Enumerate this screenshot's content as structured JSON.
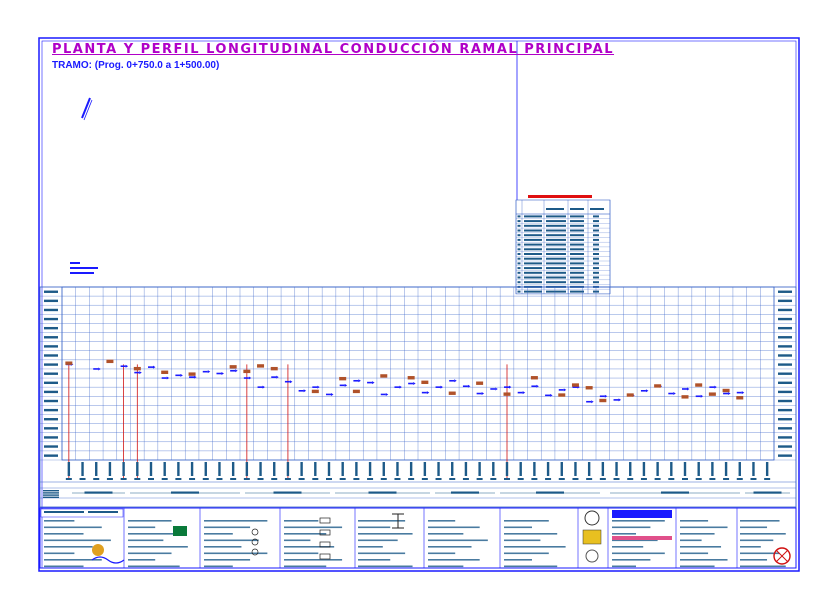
{
  "title": "PLANTA Y PERFIL LONGITUDINAL CONDUCCIÓN RAMAL PRINCIPAL",
  "subtitle": "TRAMO: (Prog. 0+750.0 a 1+500.00)",
  "colors": {
    "title": "#b000c8",
    "subtitle": "#1a1aff",
    "grid": "#3a64c8",
    "frame": "#1a1aff",
    "cells": "#1d5a88",
    "markers": "#b0522a",
    "profile": "#1a1aff",
    "redline": "#d01010"
  },
  "chart_data": {
    "type": "line",
    "title": "",
    "xlabel": "",
    "ylabel": "",
    "n_columns": 52,
    "ylim": [
      0,
      19
    ],
    "series": [
      {
        "name": "",
        "x": [
          1,
          3,
          5,
          6,
          7,
          8,
          9,
          10,
          11,
          12,
          13,
          14,
          15,
          16,
          17,
          18,
          19,
          20,
          21,
          22,
          23,
          24,
          25,
          26,
          27,
          28,
          29,
          30,
          31,
          32,
          33,
          34,
          35,
          36,
          37,
          38,
          39,
          40,
          41,
          42,
          43,
          44,
          45,
          46,
          47,
          48,
          49,
          50
        ],
        "y": [
          10.5,
          10.0,
          10.3,
          9.6,
          10.2,
          9.0,
          9.3,
          9.1,
          9.7,
          9.5,
          9.8,
          9.0,
          8.0,
          9.1,
          8.6,
          7.6,
          8.0,
          7.2,
          8.2,
          8.7,
          8.5,
          7.2,
          8.0,
          8.4,
          7.4,
          8.0,
          8.7,
          8.1,
          7.3,
          7.8,
          8.0,
          7.4,
          8.1,
          7.1,
          7.7,
          8.0,
          6.4,
          7.0,
          6.6,
          7.1,
          7.6,
          8.1,
          7.3,
          7.8,
          7.0,
          8.0,
          7.3,
          7.4
        ]
      }
    ],
    "markers_x": [
      1,
      4,
      6,
      8,
      10,
      13,
      14,
      15,
      16,
      19,
      21,
      22,
      24,
      26,
      27,
      29,
      31,
      33,
      35,
      37,
      38,
      39,
      40,
      42,
      44,
      46,
      47,
      48,
      49,
      50
    ],
    "markers_y": [
      10.6,
      10.8,
      10.0,
      9.6,
      9.4,
      10.2,
      9.7,
      10.3,
      10.0,
      7.5,
      8.9,
      7.5,
      9.2,
      9.0,
      8.5,
      7.3,
      8.4,
      7.2,
      9.0,
      7.1,
      8.2,
      7.9,
      6.5,
      7.1,
      8.1,
      6.9,
      8.2,
      7.2,
      7.6,
      6.8
    ],
    "red_lines_x": [
      1,
      5,
      6,
      14,
      17,
      33
    ],
    "info_table": {
      "rows": 17
    }
  }
}
